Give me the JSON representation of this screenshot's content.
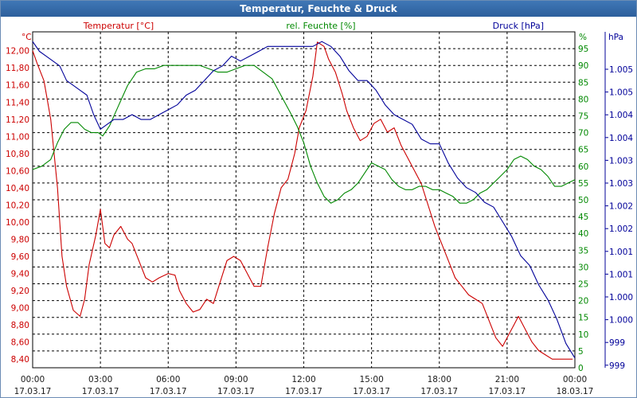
{
  "window": {
    "title": "Temperatur, Feuchte & Druck"
  },
  "colors": {
    "temperature": "#cc0000",
    "humidity": "#008800",
    "pressure": "#000099",
    "grid": "#000000"
  },
  "chart_data": {
    "type": "line",
    "title": "Temperatur, Feuchte & Druck",
    "legend": {
      "temperature_label": "Temperatur [°C]",
      "humidity_label": "rel. Feuchte [%]",
      "pressure_label": "Druck [hPa]"
    },
    "x_ticks": [
      {
        "time": "00:00",
        "date": "17.03.17"
      },
      {
        "time": "03:00",
        "date": "17.03.17"
      },
      {
        "time": "06:00",
        "date": "17.03.17"
      },
      {
        "time": "09:00",
        "date": "17.03.17"
      },
      {
        "time": "12:00",
        "date": "17.03.17"
      },
      {
        "time": "15:00",
        "date": "17.03.17"
      },
      {
        "time": "18:00",
        "date": "17.03.17"
      },
      {
        "time": "21:00",
        "date": "17.03.17"
      },
      {
        "time": "00:00",
        "date": "18.03.17"
      }
    ],
    "xlim_hours": [
      0,
      24
    ],
    "axes": {
      "temperature": {
        "unit": "°C",
        "ylim": [
          8.3,
          12.22
        ],
        "ticks": [
          "12,00",
          "11,80",
          "11,60",
          "11,40",
          "11,20",
          "11,00",
          "10,80",
          "10,60",
          "10,40",
          "10,20",
          "10,00",
          "9,80",
          "9,60",
          "9,40",
          "9,20",
          "9,00",
          "8,80",
          "8,60",
          "8,40"
        ]
      },
      "humidity": {
        "unit": "%",
        "ylim": [
          0,
          100
        ],
        "ticks": [
          "95",
          "90",
          "85",
          "80",
          "75",
          "70",
          "65",
          "60",
          "55",
          "50",
          "45",
          "40",
          "35",
          "30",
          "25",
          "20",
          "15",
          "10",
          "5",
          "0"
        ]
      },
      "pressure": {
        "unit": "hPa",
        "ylim": [
          998.9,
          1005.8
        ],
        "ticks": [
          "1.005",
          "1.005",
          "1.004",
          "1.004",
          "1.003",
          "1.003",
          "1.002",
          "1.002",
          "1.001",
          "1.001",
          "1.000",
          "1.000",
          "999",
          "999"
        ]
      }
    },
    "series": [
      {
        "name": "Temperatur [°C]",
        "axis": "temperature",
        "x": [
          0,
          0.2,
          0.5,
          0.8,
          1.1,
          1.3,
          1.5,
          1.8,
          2.1,
          2.3,
          2.5,
          2.8,
          3.0,
          3.2,
          3.4,
          3.6,
          3.9,
          4.2,
          4.4,
          4.7,
          5.0,
          5.3,
          5.6,
          6.0,
          6.3,
          6.5,
          6.8,
          7.1,
          7.4,
          7.7,
          8.0,
          8.3,
          8.6,
          8.9,
          9.2,
          9.5,
          9.8,
          10.1,
          10.4,
          10.7,
          11.0,
          11.3,
          11.6,
          11.8,
          12.1,
          12.4,
          12.6,
          12.9,
          13.1,
          13.4,
          13.7,
          13.9,
          14.2,
          14.5,
          14.8,
          15.1,
          15.4,
          15.7,
          16.0,
          16.3,
          16.6,
          16.9,
          17.2,
          17.5,
          17.8,
          18.1,
          18.4,
          18.7,
          19.0,
          19.3,
          19.6,
          19.9,
          20.2,
          20.5,
          20.8,
          21.1,
          21.3,
          21.5,
          21.8,
          22.1,
          22.4,
          22.7,
          23.0,
          23.3,
          23.6,
          23.9
        ],
        "values": [
          12.0,
          11.85,
          11.65,
          11.2,
          10.4,
          9.6,
          9.25,
          8.97,
          8.9,
          9.1,
          9.5,
          9.85,
          10.15,
          9.75,
          9.7,
          9.85,
          9.95,
          9.8,
          9.75,
          9.55,
          9.35,
          9.3,
          9.35,
          9.4,
          9.38,
          9.2,
          9.05,
          8.95,
          8.98,
          9.1,
          9.05,
          9.3,
          9.55,
          9.6,
          9.55,
          9.4,
          9.25,
          9.25,
          9.7,
          10.1,
          10.4,
          10.5,
          10.8,
          11.1,
          11.3,
          11.7,
          12.1,
          12.05,
          11.9,
          11.75,
          11.5,
          11.3,
          11.1,
          10.95,
          11.0,
          11.15,
          11.2,
          11.05,
          11.1,
          10.9,
          10.75,
          10.6,
          10.45,
          10.2,
          9.95,
          9.75,
          9.55,
          9.35,
          9.25,
          9.15,
          9.1,
          9.05,
          8.85,
          8.65,
          8.55,
          8.7,
          8.8,
          8.9,
          8.75,
          8.6,
          8.5,
          8.45,
          8.4,
          8.4,
          8.4,
          8.4
        ]
      },
      {
        "name": "rel. Feuchte [%]",
        "axis": "humidity",
        "x": [
          0,
          0.4,
          0.8,
          1.1,
          1.4,
          1.7,
          2.0,
          2.3,
          2.6,
          2.9,
          3.1,
          3.4,
          3.8,
          4.2,
          4.6,
          5.0,
          5.4,
          5.8,
          6.2,
          6.6,
          7.0,
          7.4,
          7.8,
          8.2,
          8.6,
          9.0,
          9.4,
          9.8,
          10.2,
          10.6,
          11.0,
          11.4,
          11.7,
          12.0,
          12.3,
          12.6,
          12.9,
          13.2,
          13.5,
          13.8,
          14.1,
          14.4,
          14.7,
          15.0,
          15.3,
          15.6,
          15.9,
          16.2,
          16.5,
          16.8,
          17.1,
          17.4,
          17.7,
          18.0,
          18.3,
          18.6,
          18.9,
          19.2,
          19.5,
          19.8,
          20.1,
          20.4,
          20.7,
          21.0,
          21.3,
          21.6,
          21.9,
          22.2,
          22.5,
          22.8,
          23.1,
          23.4,
          23.7,
          24.0
        ],
        "values": [
          59,
          60,
          62,
          67,
          71,
          73,
          73,
          71,
          70,
          70,
          69,
          72,
          78,
          84,
          88,
          89,
          89,
          90,
          90,
          90,
          90,
          90,
          89,
          88,
          88,
          89,
          90,
          90,
          88,
          86,
          81,
          76,
          72,
          67,
          60,
          55,
          51,
          49,
          50,
          52,
          53,
          55,
          58,
          61,
          60,
          59,
          56,
          54,
          53,
          53,
          54,
          54,
          53,
          53,
          52,
          51,
          49,
          49,
          50,
          52,
          53,
          55,
          57,
          59,
          62,
          63,
          62,
          60,
          59,
          57,
          54,
          54,
          55,
          56
        ]
      },
      {
        "name": "Druck [hPa]",
        "axis": "pressure",
        "x": [
          0,
          0.3,
          0.6,
          0.9,
          1.2,
          1.5,
          1.8,
          2.1,
          2.4,
          2.7,
          3.0,
          3.3,
          3.6,
          4.0,
          4.4,
          4.8,
          5.2,
          5.6,
          6.0,
          6.4,
          6.8,
          7.2,
          7.6,
          8.0,
          8.4,
          8.8,
          9.2,
          9.6,
          10.0,
          10.4,
          10.8,
          11.2,
          11.6,
          12.0,
          12.4,
          12.8,
          13.2,
          13.6,
          14.0,
          14.4,
          14.8,
          15.2,
          15.6,
          16.0,
          16.4,
          16.8,
          17.2,
          17.6,
          18.0,
          18.4,
          18.8,
          19.2,
          19.6,
          20.0,
          20.4,
          20.8,
          21.2,
          21.6,
          22.0,
          22.4,
          22.8,
          23.2,
          23.6,
          24.0
        ],
        "values": [
          1005.6,
          1005.4,
          1005.3,
          1005.2,
          1005.1,
          1004.8,
          1004.7,
          1004.6,
          1004.5,
          1004.1,
          1003.8,
          1003.9,
          1004.0,
          1004.0,
          1004.1,
          1004.0,
          1004.0,
          1004.1,
          1004.2,
          1004.3,
          1004.5,
          1004.6,
          1004.8,
          1005.0,
          1005.1,
          1005.3,
          1005.2,
          1005.3,
          1005.4,
          1005.5,
          1005.5,
          1005.5,
          1005.5,
          1005.5,
          1005.5,
          1005.6,
          1005.5,
          1005.3,
          1005.0,
          1004.8,
          1004.8,
          1004.6,
          1004.3,
          1004.1,
          1004.0,
          1003.9,
          1003.6,
          1003.5,
          1003.5,
          1003.1,
          1002.8,
          1002.6,
          1002.5,
          1002.3,
          1002.2,
          1001.9,
          1001.6,
          1001.2,
          1001.0,
          1000.6,
          1000.3,
          999.9,
          999.4,
          999.1
        ]
      }
    ]
  }
}
